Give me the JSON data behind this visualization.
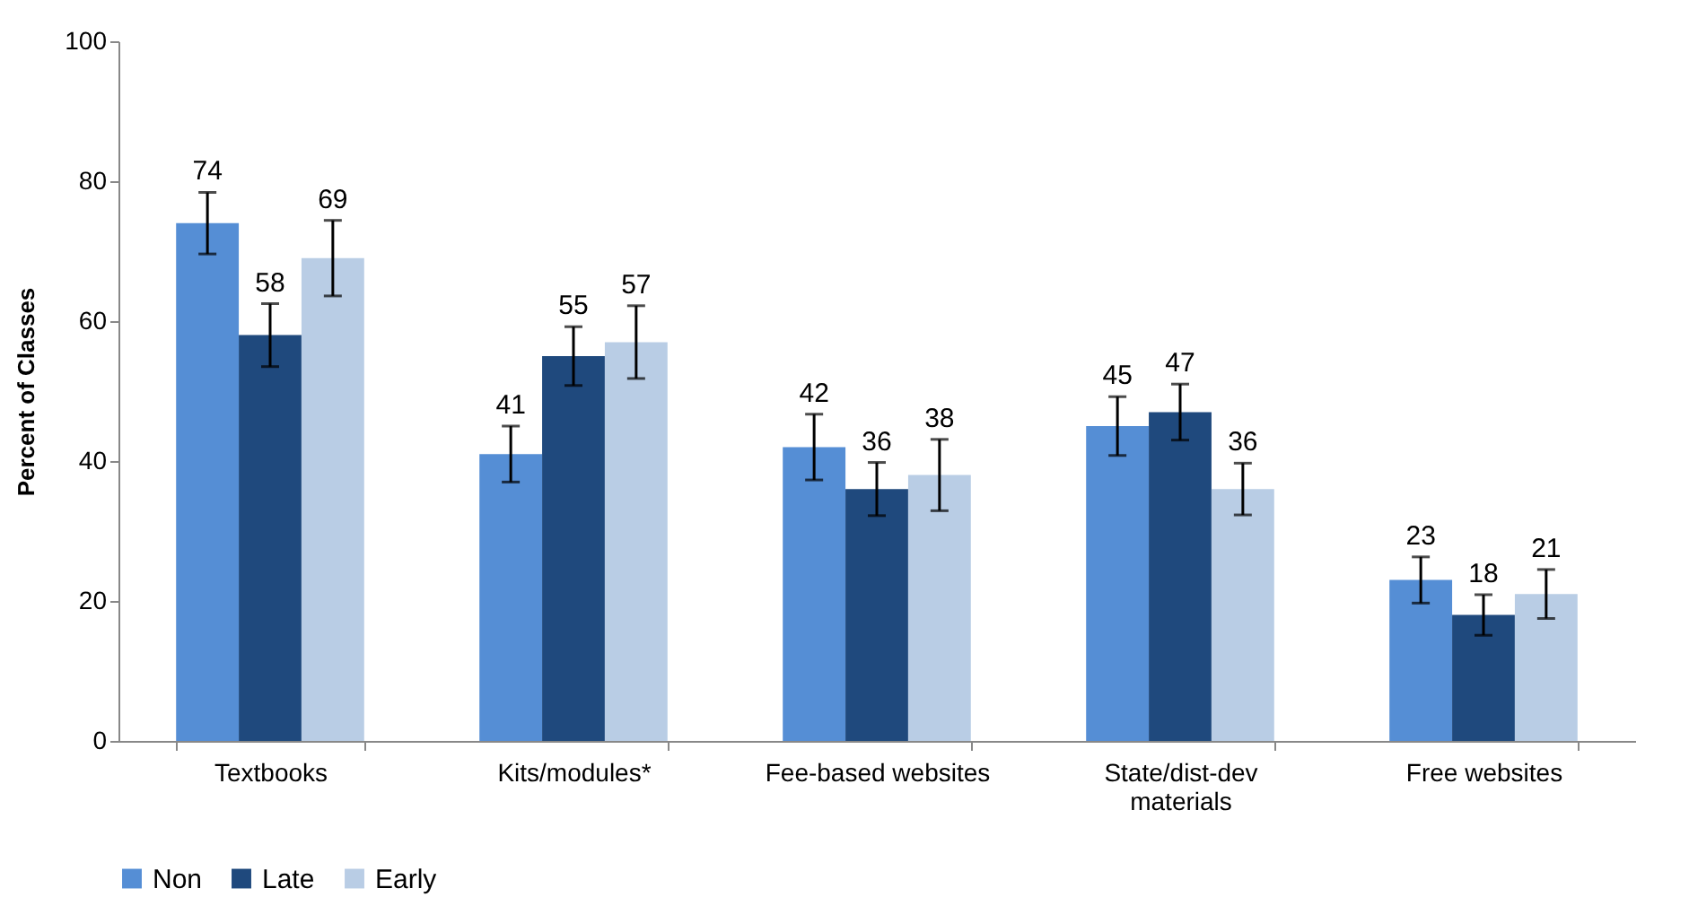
{
  "chart_data": {
    "type": "bar",
    "ylabel": "Percent of Classes",
    "categories": [
      "Textbooks",
      "Kits/modules*",
      "Fee-based websites",
      "State/dist-dev materials",
      "Free websites"
    ],
    "series": [
      {
        "name": "Non",
        "color": "#558ed5",
        "values": [
          74,
          41,
          42,
          45,
          23
        ],
        "errors": [
          4.4,
          4,
          4.7,
          4.2,
          3.3
        ]
      },
      {
        "name": "Late",
        "color": "#1f497d",
        "values": [
          58,
          55,
          36,
          47,
          18
        ],
        "errors": [
          4.5,
          4.2,
          3.8,
          4,
          2.9
        ]
      },
      {
        "name": "Early",
        "color": "#b9cde5",
        "values": [
          69,
          57,
          38,
          36,
          21
        ],
        "errors": [
          5.4,
          5.2,
          5.1,
          3.7,
          3.5
        ]
      }
    ],
    "ylim": [
      0,
      100
    ],
    "yticks": [
      0,
      20,
      40,
      60,
      80,
      100
    ],
    "grid": false,
    "legend": "bottom",
    "data_labels": true
  }
}
